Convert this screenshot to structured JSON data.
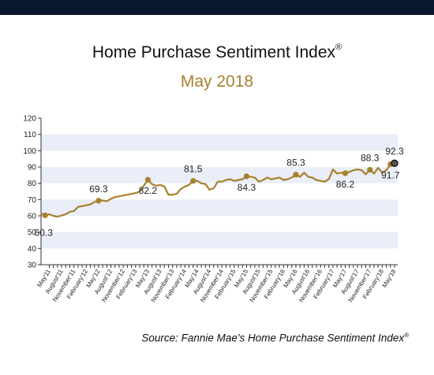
{
  "title": "Home Purchase Sentiment Index",
  "title_mark": "®",
  "subtitle": "May 2018",
  "source": "Source: Fannie Mae's Home Purchase Sentiment Index",
  "source_mark": "®",
  "colors": {
    "line": "#a8802c",
    "band": "#e9eef8",
    "axis": "#333333",
    "top_bar": "#0a1730",
    "subtitle": "#a8802c"
  },
  "chart_data": {
    "type": "line",
    "title": "Home Purchase Sentiment Index",
    "subtitle": "May 2018",
    "ylim": [
      30,
      120
    ],
    "yticks": [
      30,
      40,
      50,
      60,
      70,
      80,
      90,
      100,
      110,
      120
    ],
    "xticklabels": [
      "May'11",
      "August'11",
      "November'11",
      "February'12",
      "May'12",
      "August'12",
      "November'12",
      "February'13",
      "May'13",
      "August'13",
      "November'13",
      "February'14",
      "May'14",
      "August'14",
      "November'14",
      "February'15",
      "May'15",
      "August'15",
      "November'15",
      "February'16",
      "May'16",
      "August'16",
      "November'16",
      "February'17",
      "May'17",
      "August'17",
      "November'17",
      "February'18",
      "May'18"
    ],
    "x": [
      "2011-03",
      "2011-04",
      "2011-05",
      "2011-06",
      "2011-07",
      "2011-08",
      "2011-09",
      "2011-10",
      "2011-11",
      "2011-12",
      "2012-01",
      "2012-02",
      "2012-03",
      "2012-04",
      "2012-05",
      "2012-06",
      "2012-07",
      "2012-08",
      "2012-09",
      "2012-10",
      "2012-11",
      "2012-12",
      "2013-01",
      "2013-02",
      "2013-03",
      "2013-04",
      "2013-05",
      "2013-06",
      "2013-07",
      "2013-08",
      "2013-09",
      "2013-10",
      "2013-11",
      "2013-12",
      "2014-01",
      "2014-02",
      "2014-03",
      "2014-04",
      "2014-05",
      "2014-06",
      "2014-07",
      "2014-08",
      "2014-09",
      "2014-10",
      "2014-11",
      "2014-12",
      "2015-01",
      "2015-02",
      "2015-03",
      "2015-04",
      "2015-05",
      "2015-06",
      "2015-07",
      "2015-08",
      "2015-09",
      "2015-10",
      "2015-11",
      "2015-12",
      "2016-01",
      "2016-02",
      "2016-03",
      "2016-04",
      "2016-05",
      "2016-06",
      "2016-07",
      "2016-08",
      "2016-09",
      "2016-10",
      "2016-11",
      "2016-12",
      "2017-01",
      "2017-02",
      "2017-03",
      "2017-04",
      "2017-05",
      "2017-06",
      "2017-07",
      "2017-08",
      "2017-09",
      "2017-10",
      "2017-11",
      "2017-12",
      "2018-01",
      "2018-02",
      "2018-03",
      "2018-04",
      "2018-05"
    ],
    "values": [
      61.5,
      60.3,
      61.0,
      60.0,
      59.5,
      60.2,
      61.0,
      62.5,
      63.0,
      65.5,
      66.0,
      66.5,
      67.0,
      68.5,
      69.3,
      69.5,
      69.0,
      70.5,
      71.5,
      72.0,
      72.5,
      73.0,
      73.5,
      74.0,
      75.0,
      78.5,
      82.2,
      79.5,
      78.5,
      79.0,
      78.0,
      73.0,
      73.0,
      73.5,
      76.5,
      78.0,
      79.0,
      81.5,
      81.5,
      80.0,
      79.5,
      76.0,
      77.0,
      81.0,
      81.0,
      82.0,
      82.5,
      81.5,
      82.0,
      82.5,
      84.3,
      84.0,
      83.5,
      81.0,
      82.0,
      83.5,
      82.5,
      83.0,
      83.5,
      82.0,
      82.5,
      83.5,
      85.3,
      84.0,
      86.5,
      84.0,
      83.5,
      82.0,
      81.5,
      81.0,
      82.5,
      88.5,
      86.0,
      86.5,
      86.2,
      87.0,
      88.0,
      88.5,
      88.0,
      85.5,
      88.3,
      86.0,
      89.5,
      86.5,
      88.0,
      91.7,
      92.3
    ],
    "markers": [
      1,
      14,
      26,
      37,
      50,
      62,
      74,
      80,
      85,
      86
    ],
    "highlight_index": 86,
    "data_labels": [
      {
        "index": 1,
        "text": "60.3",
        "pos": "below-left"
      },
      {
        "index": 14,
        "text": "69.3",
        "pos": "above"
      },
      {
        "index": 26,
        "text": "82.2",
        "pos": "below"
      },
      {
        "index": 37,
        "text": "81.5",
        "pos": "above"
      },
      {
        "index": 50,
        "text": "84.3",
        "pos": "below"
      },
      {
        "index": 62,
        "text": "85.3",
        "pos": "above"
      },
      {
        "index": 74,
        "text": "86.2",
        "pos": "below"
      },
      {
        "index": 80,
        "text": "88.3",
        "pos": "above"
      },
      {
        "index": 85,
        "text": "91.7",
        "pos": "below"
      },
      {
        "index": 86,
        "text": "92.3",
        "pos": "above"
      }
    ],
    "grid": "alternating horizontal bands",
    "legend": "none"
  }
}
